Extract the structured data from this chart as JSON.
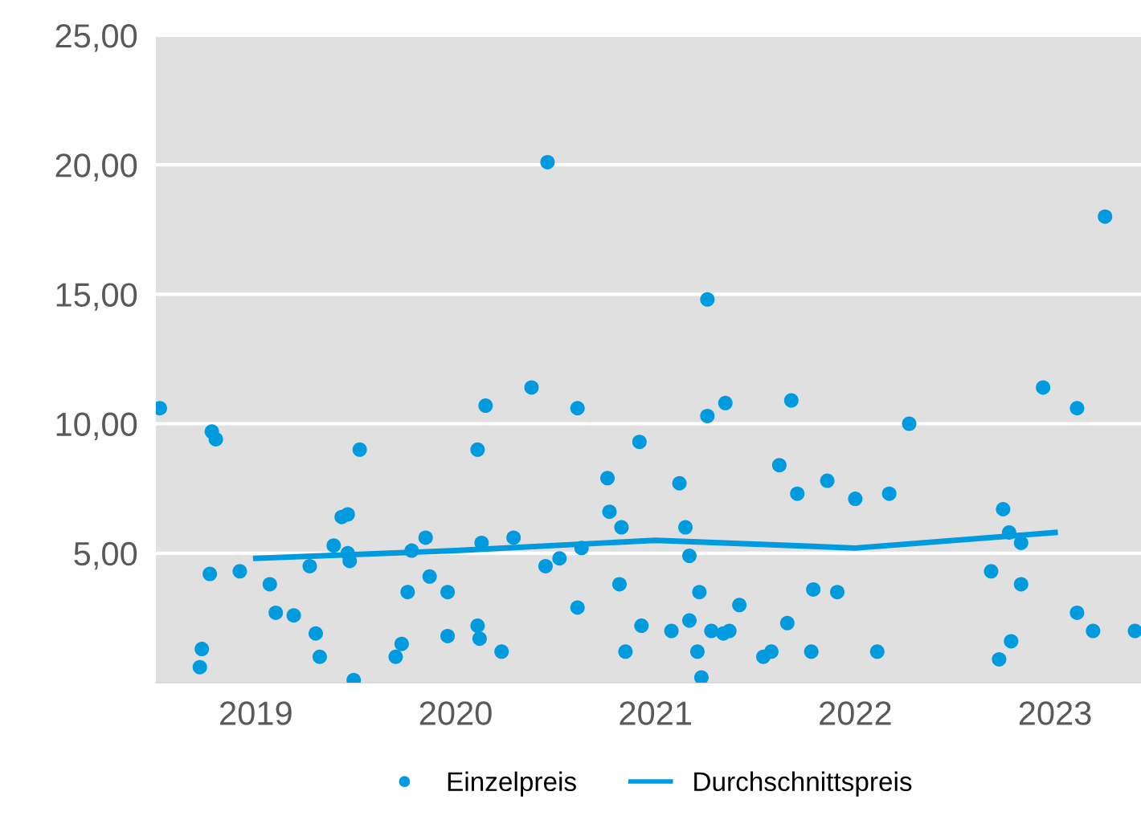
{
  "chart_data": {
    "type": "scatter",
    "series": [
      {
        "name": "Einzelpreis",
        "color": "#009ade",
        "marker": "circle",
        "x": [
          2018.52,
          2018.73,
          2018.72,
          2018.77,
          2018.78,
          2018.8,
          2018.92,
          2019.07,
          2019.1,
          2019.19,
          2019.27,
          2019.3,
          2019.32,
          2019.39,
          2019.43,
          2019.46,
          2019.46,
          2019.47,
          2019.49,
          2019.52,
          2019.7,
          2019.73,
          2019.76,
          2019.78,
          2019.85,
          2019.87,
          2019.96,
          2019.96,
          2020.11,
          2020.15,
          2020.11,
          2020.12,
          2020.13,
          2020.23,
          2020.29,
          2020.38,
          2020.46,
          2020.45,
          2020.52,
          2020.61,
          2020.61,
          2020.63,
          2020.76,
          2020.77,
          2020.83,
          2020.82,
          2020.85,
          2020.92,
          2020.93,
          2021.08,
          2021.12,
          2021.15,
          2021.17,
          2021.17,
          2021.21,
          2021.22,
          2021.23,
          2021.26,
          2021.26,
          2021.28,
          2021.34,
          2021.35,
          2021.37,
          2021.42,
          2021.54,
          2021.58,
          2021.62,
          2021.66,
          2021.68,
          2021.71,
          2021.78,
          2021.79,
          2021.86,
          2021.91,
          2022.0,
          2022.11,
          2022.17,
          2022.27,
          2022.68,
          2022.72,
          2022.74,
          2022.77,
          2022.78,
          2022.83,
          2022.83,
          2022.94,
          2023.11,
          2023.25,
          2023.11,
          2023.19,
          2023.4
        ],
        "values": [
          10.6,
          1.3,
          0.6,
          4.2,
          9.7,
          9.4,
          4.3,
          3.8,
          2.7,
          2.6,
          4.5,
          1.9,
          1.0,
          5.3,
          6.4,
          6.5,
          5.0,
          4.7,
          0.1,
          9.0,
          1.0,
          1.5,
          3.5,
          5.1,
          5.6,
          4.1,
          3.5,
          1.8,
          9.0,
          10.7,
          2.2,
          1.7,
          5.4,
          1.2,
          5.6,
          11.4,
          20.1,
          4.5,
          4.8,
          10.6,
          2.9,
          5.2,
          7.9,
          6.6,
          6.0,
          3.8,
          1.2,
          9.3,
          2.2,
          2.0,
          7.7,
          6.0,
          4.9,
          2.4,
          1.2,
          3.5,
          0.2,
          14.8,
          10.3,
          2.0,
          1.9,
          10.8,
          2.0,
          3.0,
          1.0,
          1.2,
          8.4,
          2.3,
          10.9,
          7.3,
          1.2,
          3.6,
          7.8,
          3.5,
          7.1,
          1.2,
          7.3,
          10.0,
          4.3,
          0.9,
          6.7,
          5.8,
          1.6,
          5.4,
          3.8,
          11.4,
          10.6,
          18.0,
          2.7,
          2.0,
          2.0
        ]
      },
      {
        "name": "Durchschnittspreis",
        "type": "line",
        "color": "#009ade",
        "marker": "none",
        "line_style": "solid",
        "x": [
          2019,
          2020,
          2021,
          2022,
          2023
        ],
        "values": [
          4.8,
          5.1,
          5.5,
          5.2,
          5.8
        ]
      }
    ],
    "xlim": [
      2018.5,
      2023.43
    ],
    "xticks": [
      2019,
      2020,
      2021,
      2022,
      2023
    ],
    "ylim": [
      0,
      25
    ],
    "yticks": [
      {
        "value": 5,
        "label": "5,00"
      },
      {
        "value": 10,
        "label": "10,00"
      },
      {
        "value": 15,
        "label": "15,00"
      },
      {
        "value": 20,
        "label": "20,00"
      },
      {
        "value": 25,
        "label": "25,00"
      }
    ],
    "grid": "y",
    "legend": "bottom"
  }
}
